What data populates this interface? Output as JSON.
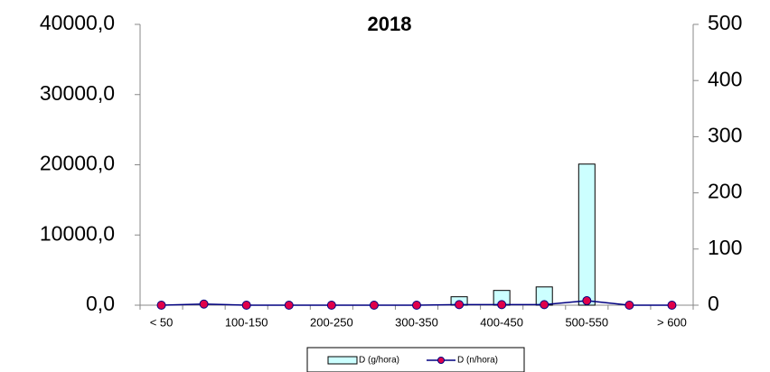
{
  "chart_data": {
    "type": "bar_line",
    "title": "2018",
    "categories": [
      "< 50",
      null,
      "100-150",
      null,
      "200-250",
      null,
      "300-350",
      null,
      "400-450",
      null,
      "500-550",
      null,
      "> 600"
    ],
    "series": [
      {
        "name": "D (g/hora)",
        "type": "bar",
        "color": "#ccffff",
        "axis": "y",
        "values": [
          0,
          0,
          0,
          0,
          0,
          0,
          0,
          1200,
          2100,
          2600,
          20100,
          0,
          0
        ]
      },
      {
        "name": "D (n/hora)",
        "type": "line",
        "color": "#000080",
        "marker_color": "#e0004a",
        "axis": "y2",
        "values": [
          0,
          2,
          0,
          0,
          0,
          0,
          0,
          1,
          1,
          1,
          8,
          0,
          0
        ]
      }
    ],
    "ylim": [
      0,
      40000
    ],
    "yticks": [
      {
        "value": 0,
        "label": "0,0"
      },
      {
        "value": 10000,
        "label": "10000,0"
      },
      {
        "value": 20000,
        "label": "20000,0"
      },
      {
        "value": 30000,
        "label": "30000,0"
      },
      {
        "value": 40000,
        "label": "40000,0"
      }
    ],
    "y2lim": [
      0,
      500
    ],
    "y2ticks": [
      0,
      100,
      200,
      300,
      400,
      500
    ],
    "legend": "bottom"
  }
}
